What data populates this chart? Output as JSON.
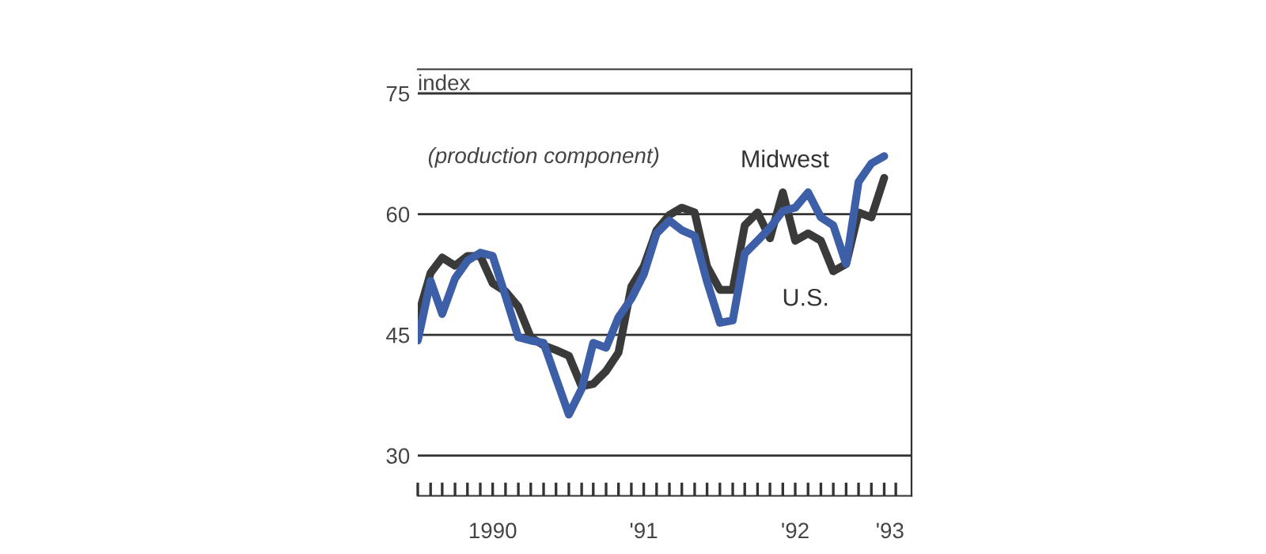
{
  "chart_data": {
    "type": "line",
    "ylabel": "index",
    "annotations": [
      "(production component)"
    ],
    "x": [
      "1990-01",
      "1990-02",
      "1990-03",
      "1990-04",
      "1990-05",
      "1990-06",
      "1990-07",
      "1990-08",
      "1990-09",
      "1990-10",
      "1990-11",
      "1990-12",
      "1991-01",
      "1991-02",
      "1991-03",
      "1991-04",
      "1991-05",
      "1991-06",
      "1991-07",
      "1991-08",
      "1991-09",
      "1991-10",
      "1991-11",
      "1991-12",
      "1992-01",
      "1992-02",
      "1992-03",
      "1992-04",
      "1992-05",
      "1992-06",
      "1992-07",
      "1992-08",
      "1992-09",
      "1992-10",
      "1992-11",
      "1992-12",
      "1993-01",
      "1993-02"
    ],
    "series": [
      {
        "name": "U.S.",
        "color": "#3a3a3a",
        "values": [
          47.2,
          52.7,
          54.6,
          53.6,
          54.8,
          54.8,
          51.4,
          50.4,
          48.5,
          44.7,
          43.7,
          43.1,
          42.4,
          38.6,
          38.9,
          40.5,
          42.8,
          51,
          53.5,
          58,
          59.9,
          60.8,
          60.2,
          53.5,
          50.6,
          50.6,
          58.6,
          60.2,
          57,
          62.7,
          56.7,
          57.6,
          56.7,
          52.9,
          53.8,
          60.2,
          59.6,
          64.5
        ]
      },
      {
        "name": "Midwest",
        "color": "#3d5fa8",
        "values": [
          44.3,
          51.7,
          47.6,
          52,
          54.2,
          55.2,
          54.8,
          49.8,
          44.7,
          44.3,
          44,
          39.6,
          35.1,
          38.3,
          44,
          43.4,
          47.2,
          49.5,
          52.5,
          57.6,
          59.2,
          58,
          57.3,
          51.6,
          46.5,
          46.8,
          55.1,
          56.7,
          58.3,
          60.4,
          60.8,
          62.7,
          59.6,
          58.6,
          53.8,
          64,
          66.3,
          67.2
        ]
      }
    ],
    "xlim": [
      "1990-01-01",
      "1993-04-08"
    ],
    "xticks": [
      {
        "value": "1990-07-01",
        "label": "1990"
      },
      {
        "value": "1991-07-01",
        "label": "'91"
      },
      {
        "value": "1992-07-01",
        "label": "'92"
      },
      {
        "value": "1993-02-15",
        "label": "'93"
      },
      {
        "value": "1990-01-01",
        "label": null
      },
      {
        "value": "1990-02-01",
        "label": null
      },
      {
        "value": "1990-03-01",
        "label": null
      },
      {
        "value": "1990-04-01",
        "label": null
      },
      {
        "value": "1990-05-01",
        "label": null
      },
      {
        "value": "1990-06-01",
        "label": null
      },
      {
        "value": "1990-07-01",
        "label": null
      },
      {
        "value": "1990-08-01",
        "label": null
      },
      {
        "value": "1990-09-01",
        "label": null
      },
      {
        "value": "1990-10-01",
        "label": null
      },
      {
        "value": "1990-11-01",
        "label": null
      },
      {
        "value": "1990-12-01",
        "label": null
      },
      {
        "value": "1991-01-01",
        "label": null
      },
      {
        "value": "1991-02-01",
        "label": null
      },
      {
        "value": "1991-03-01",
        "label": null
      },
      {
        "value": "1991-04-01",
        "label": null
      },
      {
        "value": "1991-05-01",
        "label": null
      },
      {
        "value": "1991-06-01",
        "label": null
      },
      {
        "value": "1991-07-01",
        "label": null
      },
      {
        "value": "1991-08-01",
        "label": null
      },
      {
        "value": "1991-09-01",
        "label": null
      },
      {
        "value": "1991-10-01",
        "label": null
      },
      {
        "value": "1991-11-01",
        "label": null
      },
      {
        "value": "1991-12-01",
        "label": null
      },
      {
        "value": "1992-01-01",
        "label": null
      },
      {
        "value": "1992-02-01",
        "label": null
      },
      {
        "value": "1992-03-01",
        "label": null
      },
      {
        "value": "1992-04-01",
        "label": null
      },
      {
        "value": "1992-05-01",
        "label": null
      },
      {
        "value": "1992-06-01",
        "label": null
      },
      {
        "value": "1992-07-01",
        "label": null
      },
      {
        "value": "1992-08-01",
        "label": null
      },
      {
        "value": "1992-09-01",
        "label": null
      },
      {
        "value": "1992-10-01",
        "label": null
      },
      {
        "value": "1992-11-01",
        "label": null
      },
      {
        "value": "1992-12-01",
        "label": null
      },
      {
        "value": "1993-01-01",
        "label": null
      },
      {
        "value": "1993-02-01",
        "label": null
      },
      {
        "value": "1993-03-01",
        "label": null
      }
    ],
    "ylim": [
      25,
      78
    ],
    "yticks": [
      30,
      45,
      60,
      75
    ],
    "grid": "y",
    "legend": false,
    "marker": "none",
    "line_style": "solid"
  }
}
